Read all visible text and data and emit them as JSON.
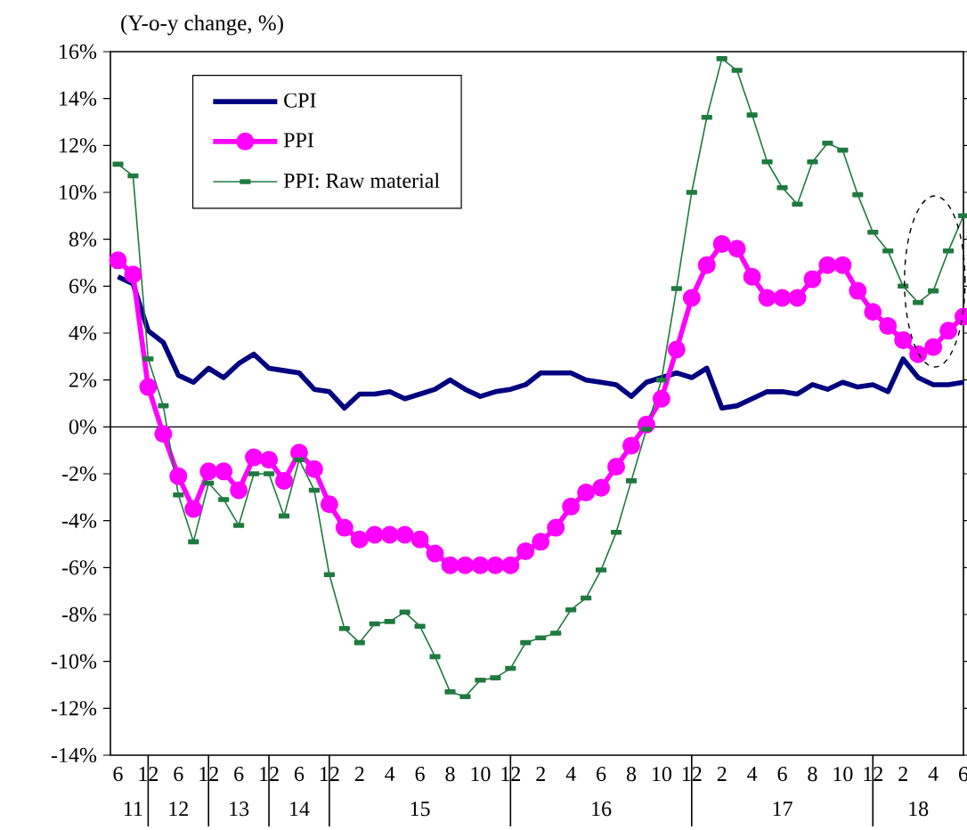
{
  "chart_data": {
    "type": "line",
    "ylabel": "(Y-o-y change, %)",
    "categories": [
      "6",
      null,
      "12",
      null,
      "6",
      null,
      "12",
      null,
      "6",
      null,
      "12",
      null,
      "6",
      null,
      "12",
      null,
      "2",
      null,
      "4",
      null,
      "6",
      null,
      "8",
      null,
      "10",
      null,
      "12",
      null,
      "2",
      null,
      "4",
      null,
      "6",
      null,
      "8",
      null,
      "10",
      null,
      "12",
      null,
      "2",
      null,
      "4",
      null,
      "6",
      null,
      "8",
      null,
      "10",
      null,
      "12",
      null,
      "2",
      null,
      "4",
      null,
      "6"
    ],
    "series": [
      {
        "name": "CPI",
        "color": "#000080",
        "marker": "none",
        "values": [
          6.4,
          6.1,
          4.1,
          3.6,
          2.2,
          1.9,
          2.5,
          2.1,
          2.7,
          3.1,
          2.5,
          2.4,
          2.3,
          1.6,
          1.5,
          0.8,
          1.4,
          1.4,
          1.5,
          1.2,
          1.4,
          1.6,
          2.0,
          1.6,
          1.3,
          1.5,
          1.6,
          1.8,
          2.3,
          2.3,
          2.3,
          2.0,
          1.9,
          1.8,
          1.3,
          1.9,
          2.1,
          2.3,
          2.1,
          2.5,
          0.8,
          0.9,
          1.2,
          1.5,
          1.5,
          1.4,
          1.8,
          1.6,
          1.9,
          1.7,
          1.8,
          1.5,
          2.9,
          2.1,
          1.8,
          1.8,
          1.9
        ]
      },
      {
        "name": "PPI",
        "color": "#ff00ff",
        "marker": "circle",
        "values": [
          7.1,
          6.5,
          1.7,
          -0.3,
          -2.1,
          -3.5,
          -1.9,
          -1.9,
          -2.7,
          -1.3,
          -1.4,
          -2.3,
          -1.1,
          -1.8,
          -3.3,
          -4.3,
          -4.8,
          -4.6,
          -4.6,
          -4.6,
          -4.8,
          -5.4,
          -5.9,
          -5.9,
          -5.9,
          -5.9,
          -5.9,
          -5.3,
          -4.9,
          -4.3,
          -3.4,
          -2.8,
          -2.6,
          -1.7,
          -0.8,
          0.1,
          1.2,
          3.3,
          5.5,
          6.9,
          7.8,
          7.6,
          6.4,
          5.5,
          5.5,
          5.5,
          6.3,
          6.9,
          6.9,
          5.8,
          4.9,
          4.3,
          3.7,
          3.1,
          3.4,
          4.1,
          4.7
        ]
      },
      {
        "name": "PPI: Raw material",
        "color": "#1f7a3f",
        "marker": "square",
        "values": [
          11.2,
          10.7,
          2.9,
          0.9,
          -2.9,
          -4.9,
          -2.4,
          -3.1,
          -4.2,
          -2.0,
          -2.0,
          -3.8,
          -1.4,
          -2.7,
          -6.3,
          -8.6,
          -9.2,
          -8.4,
          -8.3,
          -7.9,
          -8.5,
          -9.8,
          -11.3,
          -11.5,
          -10.8,
          -10.7,
          -10.3,
          -9.2,
          -9.0,
          -8.8,
          -7.8,
          -7.3,
          -6.1,
          -4.5,
          -2.3,
          -0.1,
          2.0,
          5.9,
          10.0,
          13.2,
          15.7,
          15.2,
          13.3,
          11.3,
          10.2,
          9.5,
          11.3,
          12.1,
          11.8,
          9.9,
          8.3,
          7.5,
          6.0,
          5.3,
          5.8,
          7.5,
          9.0
        ]
      }
    ],
    "ylim": [
      -14,
      16
    ],
    "yticks": [
      {
        "value": -14,
        "label": "-14%"
      },
      {
        "value": -12,
        "label": "-12%"
      },
      {
        "value": -10,
        "label": "-10%"
      },
      {
        "value": -8,
        "label": "-8%"
      },
      {
        "value": -6,
        "label": "-6%"
      },
      {
        "value": -4,
        "label": "-4%"
      },
      {
        "value": -2,
        "label": "-2%"
      },
      {
        "value": 0,
        "label": "0%"
      },
      {
        "value": 2,
        "label": "2%"
      },
      {
        "value": 4,
        "label": "4%"
      },
      {
        "value": 6,
        "label": "6%"
      },
      {
        "value": 8,
        "label": "8%"
      },
      {
        "value": 10,
        "label": "10%"
      },
      {
        "value": 12,
        "label": "12%"
      },
      {
        "value": 14,
        "label": "14%"
      },
      {
        "value": 16,
        "label": "16%"
      }
    ],
    "ref_lines": [
      {
        "axis": "y",
        "value": 0
      }
    ],
    "annotations": [
      "11",
      "12",
      "13",
      "14",
      "15",
      "16",
      "17",
      "18"
    ],
    "legend": "top left",
    "grid": false
  }
}
